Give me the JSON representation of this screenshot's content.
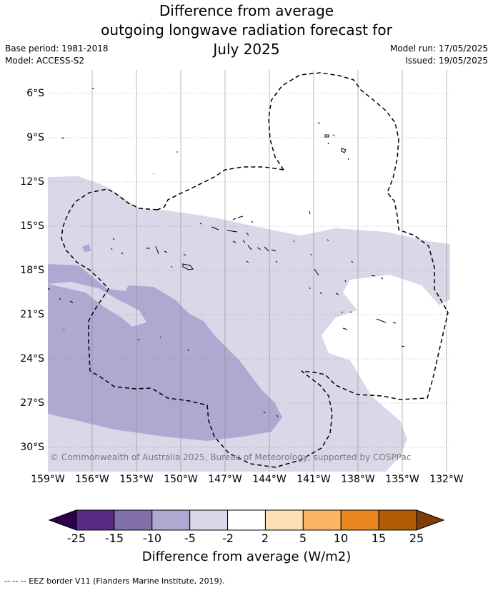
{
  "title": {
    "line1": "Difference from average",
    "line2": "outgoing longwave radiation forecast for",
    "line3": "July 2025"
  },
  "meta": {
    "base_period": "Base period: 1981-2018",
    "model": "Model: ACCESS-S2",
    "model_run": "Model run: 17/05/2025",
    "issued": "Issued: 19/05/2025"
  },
  "map": {
    "lat_labels": [
      "6°S",
      "9°S",
      "12°S",
      "15°S",
      "18°S",
      "21°S",
      "24°S",
      "27°S",
      "30°S"
    ],
    "lon_labels": [
      "159°W",
      "156°W",
      "153°W",
      "150°W",
      "147°W",
      "144°W",
      "141°W",
      "138°W",
      "135°W",
      "132°W"
    ],
    "copyright": "© Commonwealth of Australia 2025, Bureau of Meteorology, supported by COSPPac"
  },
  "colorbar": {
    "title": "Difference from average (W/m2)",
    "tick_labels": [
      "-25",
      "-15",
      "-10",
      "-5",
      "-2",
      "2",
      "5",
      "10",
      "15",
      "25"
    ],
    "colors": [
      "#5a2a86",
      "#8470a8",
      "#b0a8d0",
      "#d9d8e9",
      "#ffffff",
      "#fddfb4",
      "#fbb664",
      "#e8871e",
      "#b35a06"
    ],
    "extend_low_color": "#2d004b",
    "extend_high_color": "#7f3b08"
  },
  "footer": {
    "legend_text": "--  --  -- EEZ border V11 (Flanders Marine Institute, 2019)."
  }
}
